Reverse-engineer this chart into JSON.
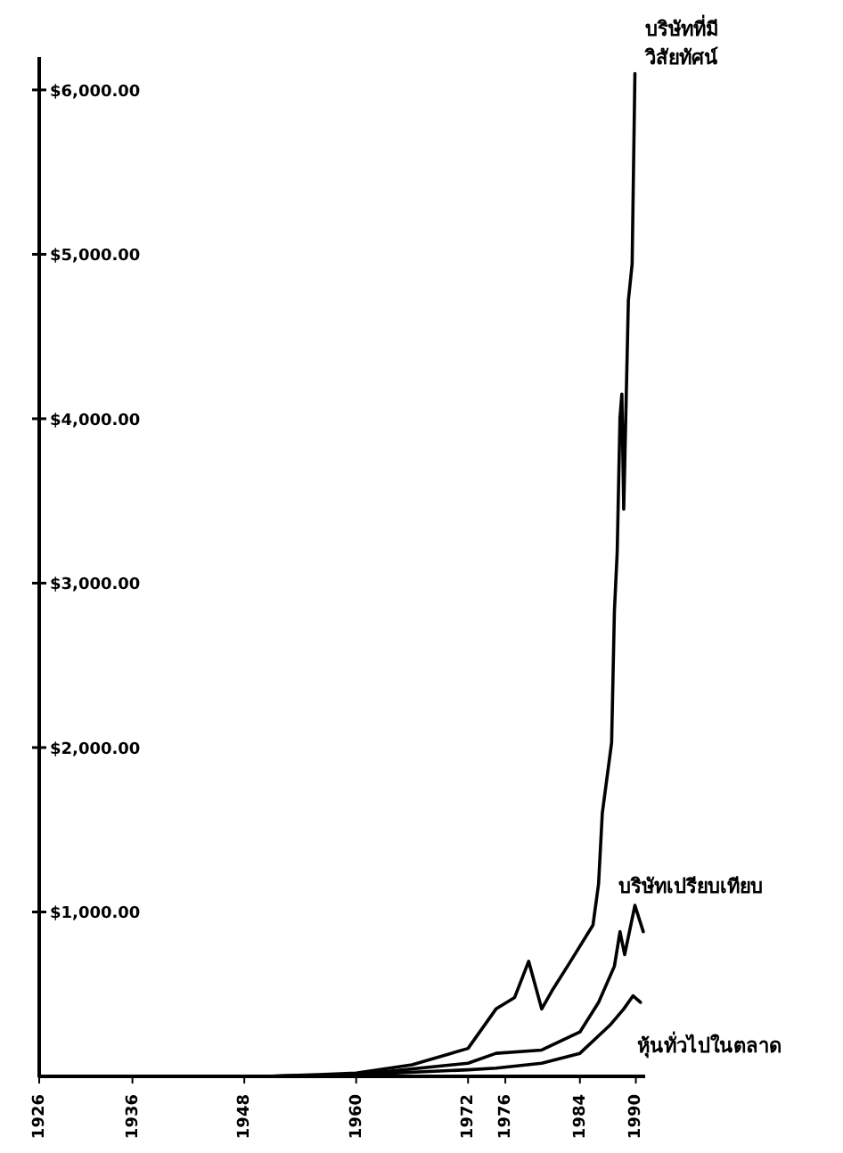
{
  "chart_data": {
    "type": "line",
    "xlim": [
      1926,
      1991
    ],
    "ylim": [
      0,
      6200
    ],
    "xticks": [
      1926,
      1936,
      1948,
      1960,
      1972,
      1976,
      1984,
      1990
    ],
    "yticks": [
      {
        "value": 1000,
        "label": "$1,000.00"
      },
      {
        "value": 2000,
        "label": "$2,000.00"
      },
      {
        "value": 3000,
        "label": "$3,000.00"
      },
      {
        "value": 4000,
        "label": "$4,000.00"
      },
      {
        "value": 5000,
        "label": "$5,000.00"
      },
      {
        "value": 6000,
        "label": "$6,000.00"
      }
    ],
    "grid": false,
    "series": [
      {
        "name": "บริษัทที่มี วิสัยทัศน์",
        "color": "#000000",
        "x": [
          1926,
          1940,
          1950,
          1956,
          1960,
          1966,
          1972,
          1975,
          1977,
          1978.5,
          1979.9,
          1981,
          1983,
          1985.4,
          1986,
          1986.4,
          1987.4,
          1987.7,
          1988,
          1988.3,
          1988.5,
          1988.7,
          1989.2,
          1989.6,
          1989.9
        ],
        "values": [
          0,
          0,
          0,
          10,
          20,
          70,
          170,
          410,
          480,
          700,
          410,
          520,
          700,
          920,
          1170,
          1600,
          2030,
          2830,
          3190,
          4010,
          4150,
          3450,
          4720,
          4940,
          6100
        ]
      },
      {
        "name": "บริษัทเปรียบเทียบ",
        "color": "#000000",
        "x": [
          1926,
          1950,
          1960,
          1972,
          1975,
          1979.9,
          1984,
          1986,
          1987.7,
          1988.3,
          1988.8,
          1989.9,
          1990.8
        ],
        "values": [
          0,
          0,
          10,
          80,
          140,
          160,
          270,
          450,
          670,
          880,
          740,
          1040,
          880
        ]
      },
      {
        "name": "หุ้นทั่วไปในตลาด",
        "color": "#000000",
        "x": [
          1926,
          1950,
          1960,
          1972,
          1975,
          1979.9,
          1984,
          1987.2,
          1988.7,
          1989.7,
          1990.5
        ],
        "values": [
          0,
          0,
          10,
          40,
          50,
          80,
          140,
          310,
          410,
          490,
          450
        ]
      }
    ]
  }
}
